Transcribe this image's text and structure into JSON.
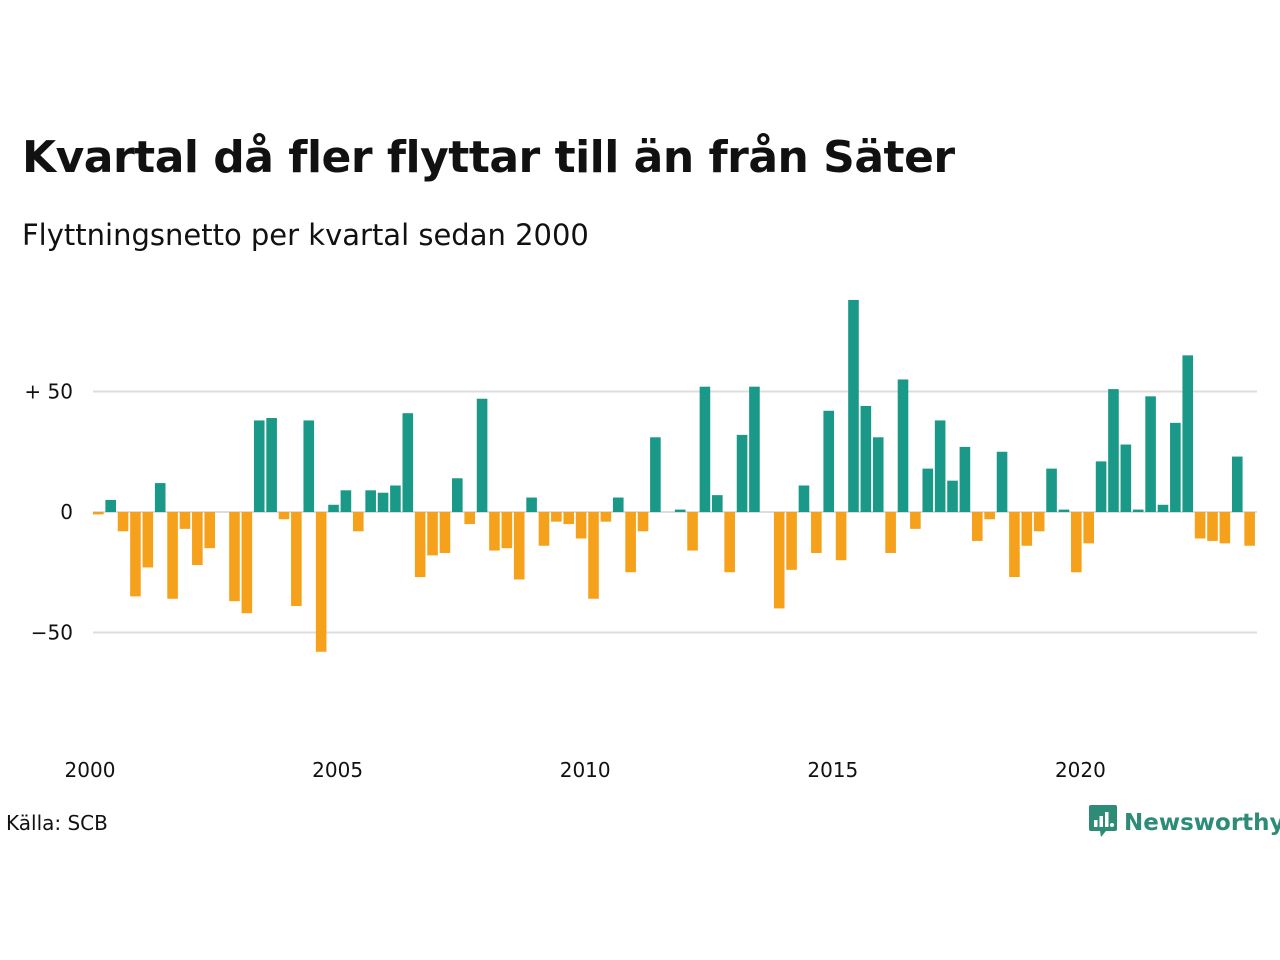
{
  "title": "Kvartal då fler flyttar till än från Säter",
  "subtitle": "Flyttningsnetto per kvartal sedan 2000",
  "source": "Källa: SCB",
  "brand": "Newsworthy",
  "colors": {
    "positive": "#1a9988",
    "negative": "#f5a11c",
    "grid": "#dddddd",
    "brand": "#2e8b78"
  },
  "chart_data": {
    "type": "bar",
    "title": "Kvartal då fler flyttar till än från Säter",
    "subtitle": "Flyttningsnetto per kvartal sedan 2000",
    "xlabel": "",
    "ylabel": "",
    "x_ticks": [
      "2000",
      "2005",
      "2010",
      "2015",
      "2020"
    ],
    "y_ticks": [
      {
        "value": 50,
        "label": "+ 50"
      },
      {
        "value": 0,
        "label": "0"
      },
      {
        "value": -50,
        "label": "−50"
      }
    ],
    "ylim": [
      -90,
      95
    ],
    "start_year": 2000,
    "grid": true,
    "legend": false,
    "values": [
      -1,
      5,
      -8,
      -35,
      -23,
      12,
      -36,
      -7,
      -22,
      -15,
      0,
      -37,
      -42,
      38,
      39,
      -3,
      -39,
      38,
      -58,
      3,
      9,
      -8,
      9,
      8,
      11,
      41,
      -27,
      -18,
      -17,
      14,
      -5,
      47,
      -16,
      -15,
      -28,
      6,
      -14,
      -4,
      -5,
      -11,
      -36,
      -4,
      6,
      -25,
      -8,
      31,
      0,
      1,
      -16,
      52,
      7,
      -25,
      32,
      52,
      0,
      -40,
      -24,
      11,
      -17,
      42,
      -20,
      88,
      44,
      31,
      -17,
      55,
      -7,
      18,
      38,
      13,
      27,
      -12,
      -3,
      25,
      -27,
      -14,
      -8,
      18,
      1,
      -25,
      -13,
      21,
      51,
      28,
      1,
      48,
      3,
      37,
      65,
      -11,
      -12,
      -13,
      23,
      -14
    ]
  }
}
